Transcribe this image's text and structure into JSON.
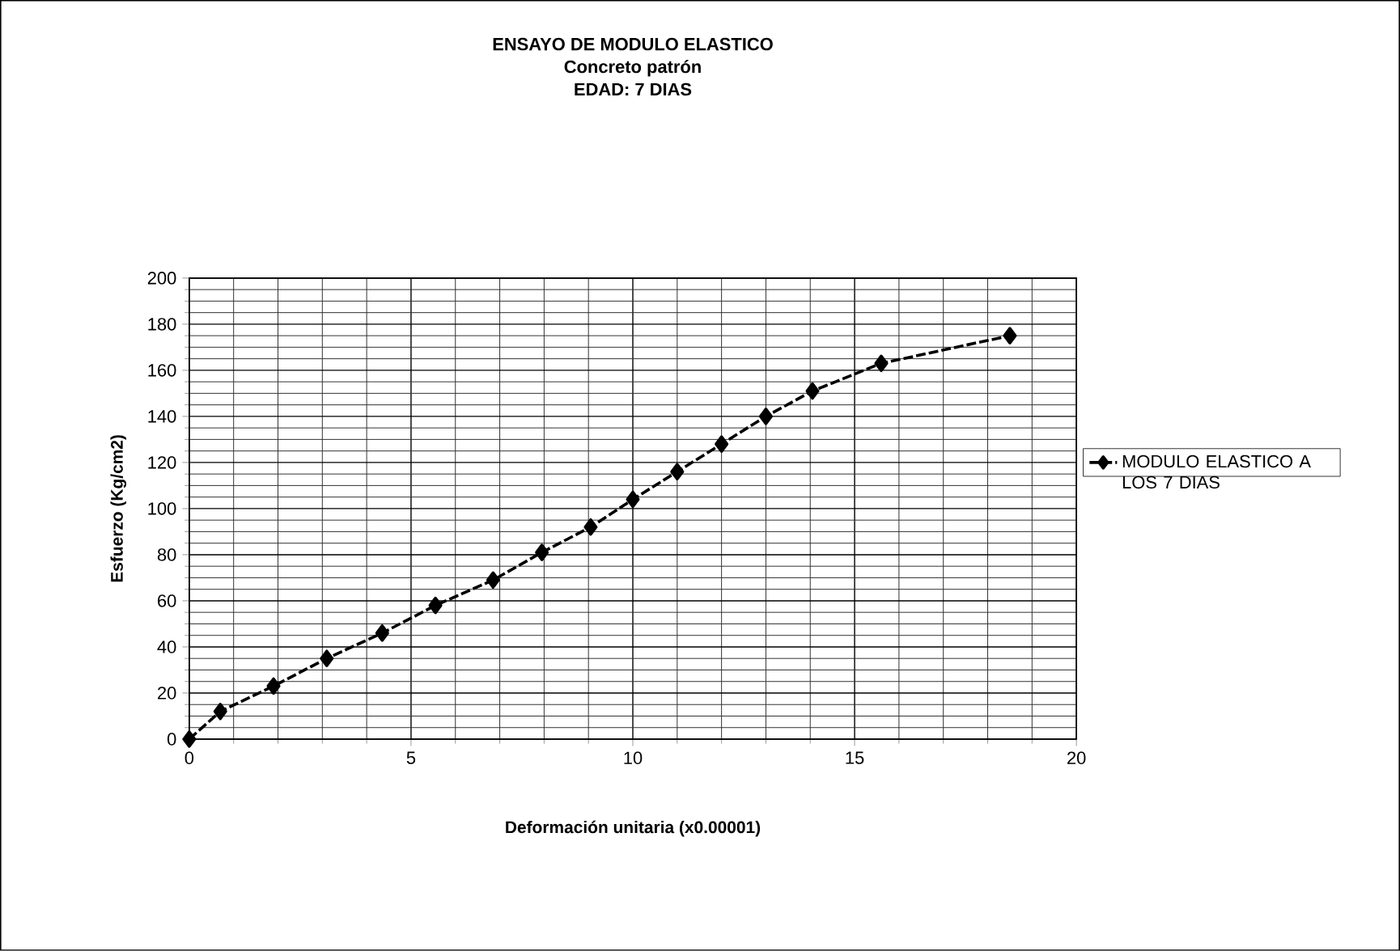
{
  "chart_data": {
    "type": "line",
    "title": "ENSAYO DE MODULO ELASTICO",
    "subtitle": "Concreto patrón",
    "annotations": [
      "EDAD: 7 DIAS"
    ],
    "xlabel": "Deformación unitaria (x0.00001)",
    "ylabel": "Esfuerzo (Kg/cm2)",
    "x": [
      0,
      0.7,
      1.9,
      3.1,
      4.35,
      5.55,
      6.85,
      7.95,
      9.05,
      10,
      11,
      12,
      13,
      14.05,
      15.6,
      18.5
    ],
    "series": [
      {
        "name": "MODULO ELASTICO A LOS 7 DIAS",
        "color": "#000000",
        "values": [
          0,
          12,
          23,
          35,
          46,
          58,
          69,
          81,
          92,
          104,
          116,
          128,
          140,
          151,
          163,
          175
        ]
      }
    ],
    "xlim": [
      0,
      20
    ],
    "ylim": [
      0,
      200
    ],
    "xticks": [
      0,
      5,
      10,
      15,
      20
    ],
    "yticks": [
      0,
      20,
      40,
      60,
      80,
      100,
      120,
      140,
      160,
      180,
      200
    ],
    "grid": true,
    "legend": "right",
    "marker": "diamond",
    "line_style": "dashed"
  }
}
